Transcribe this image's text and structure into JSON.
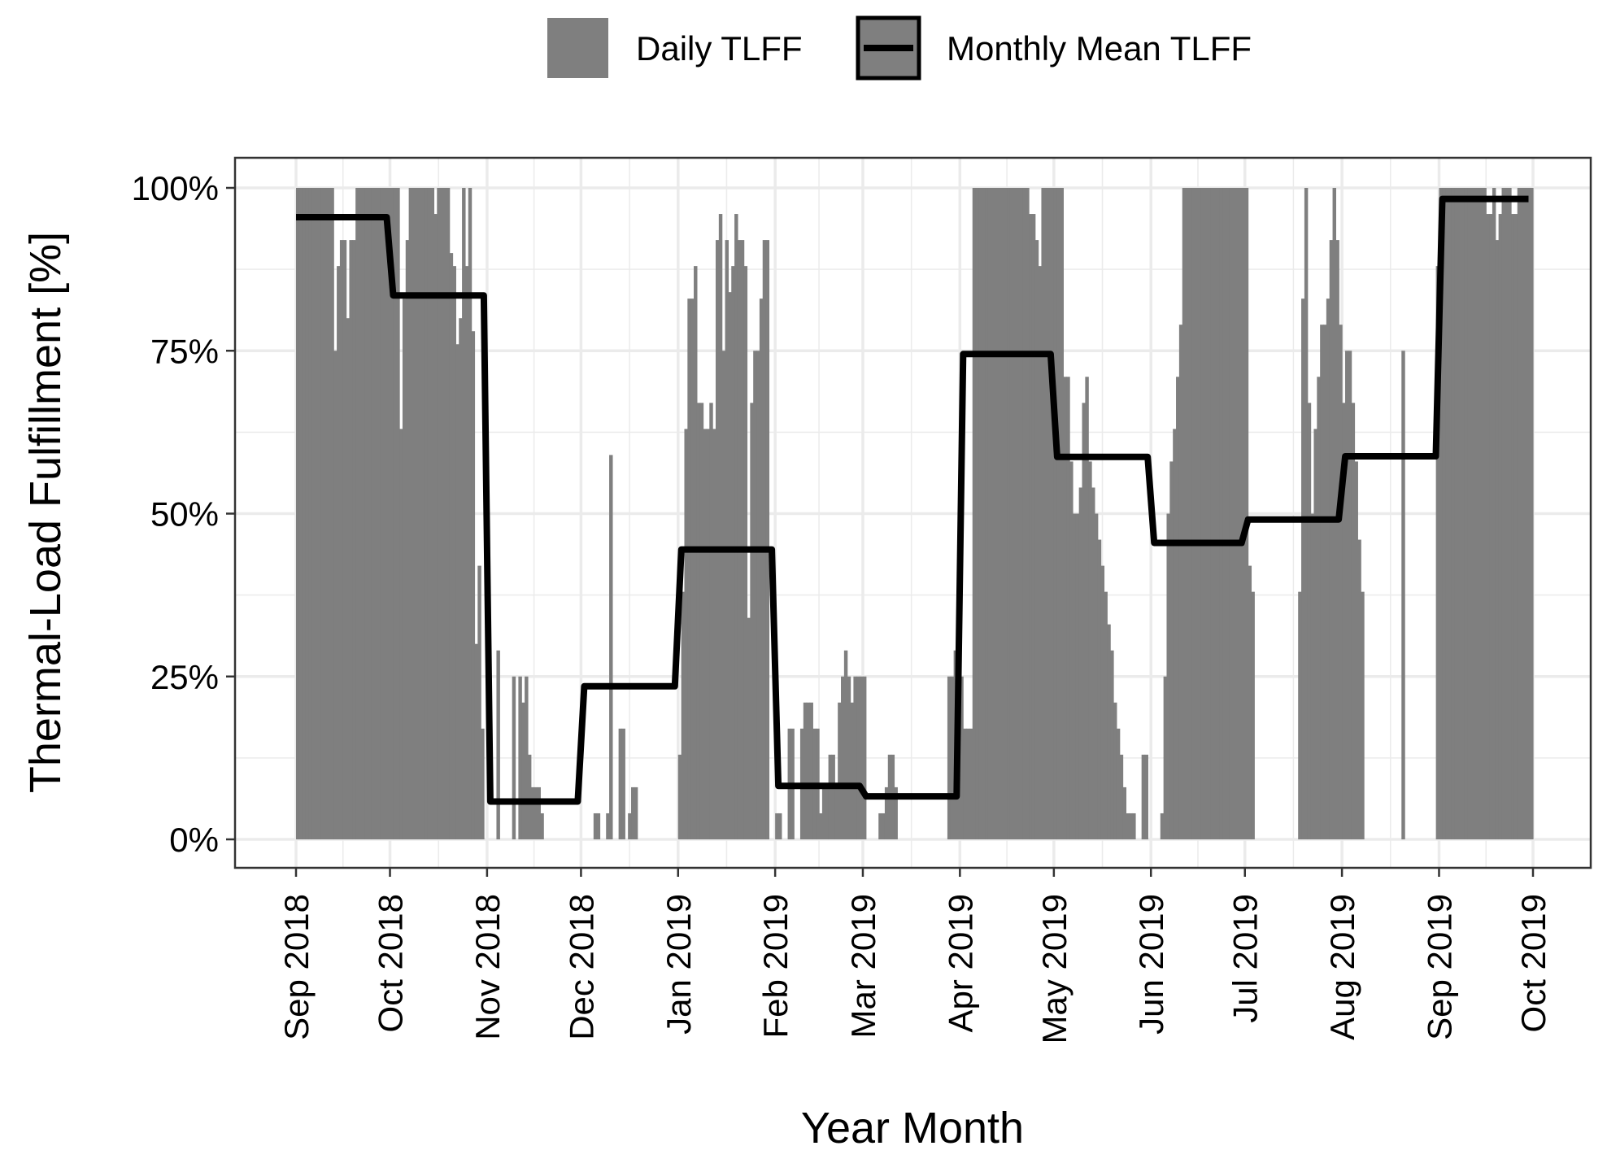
{
  "chart_data": {
    "type": "bar",
    "title": "",
    "xlabel": "Year Month",
    "ylabel": "Thermal-Load Fulfillment [%]",
    "ylim": [
      0,
      100
    ],
    "y_ticks": [
      "0%",
      "25%",
      "50%",
      "75%",
      "100%"
    ],
    "y_tick_values": [
      0,
      25,
      50,
      75,
      100
    ],
    "x_ticks": [
      "Sep 2018",
      "Oct 2018",
      "Nov 2018",
      "Dec 2018",
      "Jan 2019",
      "Feb 2019",
      "Mar 2019",
      "Apr 2019",
      "May 2019",
      "Jun 2019",
      "Jul 2019",
      "Aug 2019",
      "Sep 2019",
      "Oct 2019"
    ],
    "x_range": [
      "2018-09-01",
      "2019-10-01"
    ],
    "grid": true,
    "legend_position": "top",
    "colors": {
      "bars": "#7f7f7f",
      "line": "#000000",
      "grid": "#ebebeb",
      "panel_border": "#333333"
    },
    "series": [
      {
        "name": "Daily TLFF",
        "kind": "bar",
        "start_date": "2018-09-01",
        "values": [
          100,
          100,
          100,
          100,
          100,
          100,
          100,
          100,
          100,
          100,
          100,
          100,
          75,
          88,
          92,
          92,
          80,
          92,
          92,
          100,
          100,
          100,
          100,
          100,
          100,
          100,
          100,
          100,
          100,
          100,
          100,
          100,
          100,
          63,
          83,
          92,
          100,
          100,
          100,
          100,
          100,
          100,
          100,
          100,
          96,
          100,
          100,
          100,
          100,
          90,
          88,
          76,
          80,
          100,
          88,
          100,
          78,
          30,
          42,
          17,
          0,
          0,
          0,
          0,
          29,
          0,
          0,
          0,
          0,
          25,
          0,
          25,
          21,
          25,
          13,
          8,
          8,
          8,
          4,
          0,
          0,
          0,
          0,
          0,
          0,
          0,
          0,
          0,
          0,
          0,
          0,
          0,
          0,
          0,
          0,
          4,
          4,
          0,
          0,
          4,
          59,
          0,
          0,
          17,
          17,
          0,
          4,
          8,
          8,
          0,
          0,
          0,
          0,
          0,
          0,
          0,
          0,
          0,
          0,
          0,
          0,
          0,
          13,
          38,
          63,
          83,
          83,
          88,
          67,
          67,
          63,
          63,
          67,
          63,
          92,
          96,
          75,
          92,
          84,
          88,
          96,
          92,
          92,
          88,
          34,
          67,
          75,
          75,
          83,
          92,
          92,
          0,
          0,
          4,
          4,
          0,
          0,
          17,
          17,
          0,
          0,
          17,
          21,
          21,
          21,
          17,
          17,
          4,
          8,
          8,
          13,
          13,
          8,
          21,
          25,
          29,
          25,
          21,
          25,
          25,
          25,
          25,
          0,
          0,
          0,
          0,
          4,
          4,
          8,
          13,
          13,
          8,
          0,
          0,
          0,
          0,
          0,
          0,
          0,
          0,
          0,
          0,
          0,
          0,
          0,
          0,
          0,
          0,
          25,
          25,
          29,
          29,
          25,
          17,
          17,
          17,
          100,
          100,
          100,
          100,
          100,
          100,
          100,
          100,
          100,
          100,
          100,
          100,
          100,
          100,
          100,
          100,
          100,
          100,
          96,
          96,
          92,
          88,
          100,
          100,
          100,
          100,
          100,
          100,
          100,
          71,
          71,
          58,
          50,
          50,
          54,
          67,
          71,
          58,
          54,
          50,
          46,
          42,
          38,
          33,
          29,
          21,
          17,
          13,
          8,
          4,
          4,
          4,
          0,
          0,
          13,
          13,
          0,
          0,
          0,
          0,
          4,
          25,
          50,
          58,
          63,
          71,
          79,
          100,
          100,
          100,
          100,
          100,
          100,
          100,
          100,
          100,
          100,
          100,
          100,
          100,
          100,
          100,
          100,
          100,
          100,
          100,
          100,
          100,
          42,
          38,
          0,
          0,
          0,
          0,
          0,
          0,
          0,
          0,
          0,
          0,
          0,
          0,
          0,
          0,
          38,
          83,
          100,
          67,
          50,
          63,
          71,
          79,
          79,
          83,
          92,
          100,
          92,
          79,
          67,
          75,
          75,
          67,
          58,
          46,
          38,
          0,
          0,
          0,
          0,
          0,
          0,
          0,
          0,
          0,
          0,
          0,
          0,
          75,
          0,
          0,
          0,
          0,
          0,
          0,
          0,
          0,
          0,
          0,
          88,
          100,
          100,
          100,
          100,
          100,
          100,
          100,
          100,
          100,
          100,
          100,
          100,
          100,
          100,
          100,
          96,
          96,
          100,
          92,
          96,
          100,
          100,
          100,
          96,
          96,
          100,
          100,
          100,
          100,
          100
        ]
      },
      {
        "name": "Monthly Mean TLFF",
        "kind": "step",
        "points": [
          {
            "x": "Sep 2018",
            "y": 95.5
          },
          {
            "x": "Oct 2018",
            "y": 83.5
          },
          {
            "x": "Nov 2018",
            "y": 5.8
          },
          {
            "x": "Dec 2018",
            "y": 23.5
          },
          {
            "x": "Jan 2019",
            "y": 44.5
          },
          {
            "x": "Feb 2019",
            "y": 8.2
          },
          {
            "x": "Mar 2019",
            "y": 6.6
          },
          {
            "x": "Apr 2019",
            "y": 74.5
          },
          {
            "x": "May 2019",
            "y": 58.7
          },
          {
            "x": "Jun 2019",
            "y": 45.5
          },
          {
            "x": "Jul 2019",
            "y": 49.1
          },
          {
            "x": "Aug 2019",
            "y": 58.8
          },
          {
            "x": "Sep 2019",
            "y": 98.3
          }
        ]
      }
    ],
    "legend": [
      {
        "label": "Daily TLFF",
        "symbol": "filled-box"
      },
      {
        "label": "Monthly Mean TLFF",
        "symbol": "line-box"
      }
    ]
  }
}
